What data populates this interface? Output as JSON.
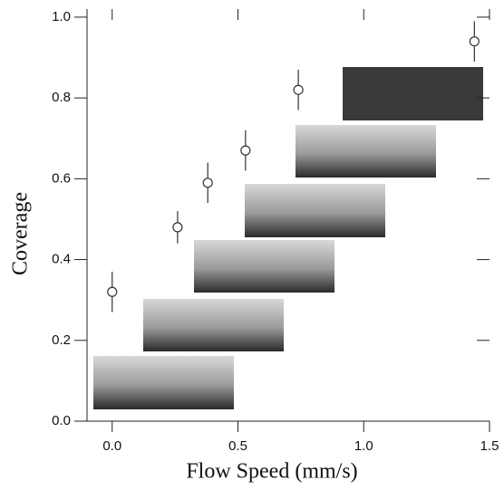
{
  "chart_data": {
    "type": "scatter",
    "x_label": "Flow Speed (mm/s)",
    "y_label": "Coverage",
    "x": [
      0.0,
      0.26,
      0.38,
      0.53,
      0.74,
      1.44
    ],
    "values": [
      0.32,
      0.48,
      0.59,
      0.67,
      0.82,
      0.94
    ],
    "errors": [
      0.05,
      0.04,
      0.05,
      0.05,
      0.05,
      0.05
    ],
    "color": "#333333",
    "xlim": [
      -0.1,
      1.5
    ],
    "ylim": [
      0,
      1.02
    ],
    "xticks": [
      {
        "value": 0,
        "label": "0.0"
      },
      0.5,
      {
        "value": 1,
        "label": "1.0"
      },
      1.5
    ],
    "yticks": [
      {
        "value": 0,
        "label": "0.0"
      },
      0.2,
      0.4,
      0.6,
      0.8,
      {
        "value": 1,
        "label": "1.0"
      }
    ]
  }
}
